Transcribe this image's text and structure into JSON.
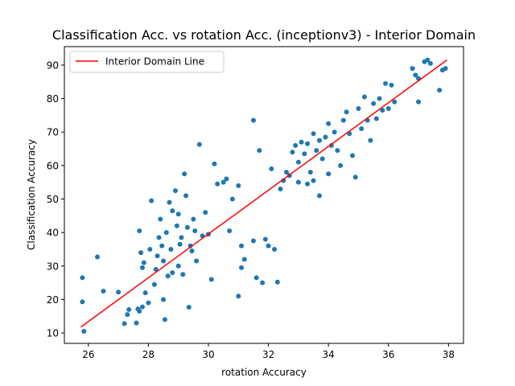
{
  "chart_data": {
    "type": "scatter",
    "title": "Classification Acc. vs rotation Acc. (inceptionv3) - Interior Domain",
    "xlabel": "rotation Accuracy",
    "ylabel": "Classification Accuracy",
    "xlim": [
      25.2,
      38.5
    ],
    "ylim": [
      6.9,
      95.5
    ],
    "xticks": [
      26,
      28,
      30,
      32,
      34,
      36,
      38
    ],
    "yticks": [
      10,
      20,
      30,
      40,
      50,
      60,
      70,
      80,
      90
    ],
    "grid": false,
    "legend_position": "top-left",
    "point_color": "#1f77b4",
    "line_color": "#ff0000",
    "series": [
      {
        "name": "",
        "kind": "points",
        "points": [
          [
            25.8,
            26.5
          ],
          [
            25.8,
            19.3
          ],
          [
            25.85,
            10.5
          ],
          [
            26.3,
            32.7
          ],
          [
            26.5,
            22.5
          ],
          [
            27.0,
            22.2
          ],
          [
            27.2,
            12.8
          ],
          [
            27.3,
            15.5
          ],
          [
            27.35,
            17.0
          ],
          [
            27.6,
            13.0
          ],
          [
            27.65,
            17.2
          ],
          [
            27.7,
            16.5
          ],
          [
            27.7,
            40.5
          ],
          [
            27.75,
            34.0
          ],
          [
            27.8,
            29.5
          ],
          [
            27.85,
            31.0
          ],
          [
            27.8,
            17.8
          ],
          [
            27.9,
            22.0
          ],
          [
            28.0,
            19.0
          ],
          [
            28.05,
            35.0
          ],
          [
            28.1,
            49.5
          ],
          [
            28.2,
            24.5
          ],
          [
            28.25,
            29.0
          ],
          [
            28.3,
            33.0
          ],
          [
            28.35,
            38.5
          ],
          [
            28.4,
            44.0
          ],
          [
            28.45,
            36.0
          ],
          [
            28.5,
            31.5
          ],
          [
            28.5,
            20.0
          ],
          [
            28.55,
            14.0
          ],
          [
            28.6,
            40.0
          ],
          [
            28.65,
            27.0
          ],
          [
            28.7,
            49.0
          ],
          [
            28.75,
            35.0
          ],
          [
            28.8,
            46.5
          ],
          [
            28.8,
            28.0
          ],
          [
            28.9,
            52.5
          ],
          [
            28.95,
            42.0
          ],
          [
            29.0,
            30.0
          ],
          [
            29.0,
            45.5
          ],
          [
            29.05,
            36.5
          ],
          [
            29.1,
            38.5
          ],
          [
            29.15,
            27.5
          ],
          [
            29.2,
            57.5
          ],
          [
            29.25,
            51.0
          ],
          [
            29.3,
            41.5
          ],
          [
            29.35,
            17.7
          ],
          [
            29.4,
            36.0
          ],
          [
            29.45,
            34.5
          ],
          [
            29.5,
            44.0
          ],
          [
            29.55,
            40.5
          ],
          [
            29.6,
            31.5
          ],
          [
            29.7,
            66.3
          ],
          [
            29.8,
            39.0
          ],
          [
            29.9,
            46.0
          ],
          [
            30.0,
            39.5
          ],
          [
            30.1,
            26.0
          ],
          [
            30.2,
            60.5
          ],
          [
            30.3,
            54.5
          ],
          [
            30.5,
            55.0
          ],
          [
            30.6,
            56.0
          ],
          [
            30.7,
            40.5
          ],
          [
            30.8,
            50.0
          ],
          [
            31.0,
            54.0
          ],
          [
            31.0,
            21.0
          ],
          [
            31.1,
            29.5
          ],
          [
            31.1,
            36.0
          ],
          [
            31.2,
            32.0
          ],
          [
            31.5,
            73.5
          ],
          [
            31.5,
            37.5
          ],
          [
            31.6,
            26.5
          ],
          [
            31.7,
            64.5
          ],
          [
            31.8,
            25.0
          ],
          [
            31.9,
            38.0
          ],
          [
            32.0,
            36.0
          ],
          [
            32.1,
            59.0
          ],
          [
            32.2,
            35.0
          ],
          [
            32.3,
            25.2
          ],
          [
            32.4,
            53.0
          ],
          [
            32.5,
            55.5
          ],
          [
            32.6,
            58.0
          ],
          [
            32.7,
            57.0
          ],
          [
            32.8,
            64.0
          ],
          [
            32.9,
            66.0
          ],
          [
            33.0,
            61.0
          ],
          [
            33.0,
            55.0
          ],
          [
            33.1,
            67.0
          ],
          [
            33.2,
            63.5
          ],
          [
            33.3,
            54.5
          ],
          [
            33.3,
            66.5
          ],
          [
            33.4,
            58.0
          ],
          [
            33.5,
            69.5
          ],
          [
            33.5,
            55.5
          ],
          [
            33.6,
            64.5
          ],
          [
            33.7,
            51.0
          ],
          [
            33.7,
            67.5
          ],
          [
            33.8,
            62.0
          ],
          [
            33.9,
            68.5
          ],
          [
            34.0,
            57.5
          ],
          [
            34.0,
            72.5
          ],
          [
            34.1,
            66.0
          ],
          [
            34.2,
            70.0
          ],
          [
            34.3,
            64.5
          ],
          [
            34.4,
            60.0
          ],
          [
            34.5,
            73.5
          ],
          [
            34.6,
            76.0
          ],
          [
            34.7,
            69.5
          ],
          [
            34.8,
            63.0
          ],
          [
            34.9,
            56.5
          ],
          [
            35.0,
            77.0
          ],
          [
            35.1,
            71.0
          ],
          [
            35.2,
            80.5
          ],
          [
            35.3,
            73.5
          ],
          [
            35.4,
            67.5
          ],
          [
            35.5,
            78.5
          ],
          [
            35.6,
            74.0
          ],
          [
            35.7,
            80.0
          ],
          [
            35.8,
            76.5
          ],
          [
            35.9,
            84.5
          ],
          [
            36.0,
            77.0
          ],
          [
            36.1,
            84.0
          ],
          [
            36.2,
            79.0
          ],
          [
            36.8,
            89.0
          ],
          [
            36.9,
            87.0
          ],
          [
            37.0,
            86.0
          ],
          [
            37.0,
            79.0
          ],
          [
            37.2,
            91.0
          ],
          [
            37.3,
            91.5
          ],
          [
            37.4,
            90.5
          ],
          [
            37.8,
            88.5
          ],
          [
            37.9,
            89.0
          ],
          [
            37.7,
            82.5
          ]
        ]
      },
      {
        "name": "Interior Domain Line",
        "kind": "line",
        "points": [
          [
            25.75,
            11.8
          ],
          [
            37.95,
            91.5
          ]
        ]
      }
    ]
  }
}
